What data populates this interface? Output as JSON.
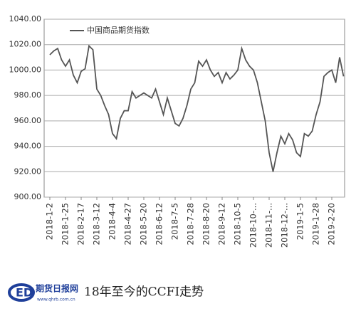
{
  "chart_data": {
    "type": "line",
    "categories": [
      "2018-1-2",
      null,
      null,
      null,
      "2018-1-25",
      null,
      null,
      null,
      "2018-2-17",
      null,
      null,
      null,
      "2018-3-12",
      null,
      null,
      null,
      "2018-4-4",
      null,
      null,
      null,
      "2018-4-27",
      null,
      null,
      null,
      "2018-5-20",
      null,
      null,
      null,
      "2018-6-12",
      null,
      null,
      null,
      "2018-7-5",
      null,
      null,
      null,
      "2018-7-28",
      null,
      null,
      null,
      "2018-8-20",
      null,
      null,
      null,
      "2018-9-12",
      null,
      null,
      null,
      "2018-10-5",
      null,
      null,
      null,
      "2018-10-...",
      null,
      null,
      null,
      "2018-11-...",
      null,
      null,
      null,
      "2018-12-...",
      null,
      null,
      null,
      "2019-1-5",
      null,
      null,
      null,
      "2019-1-28",
      null,
      null,
      null,
      "2019-2-20",
      null,
      null,
      null
    ],
    "series": [
      {
        "name": "中国商品期货指数",
        "color": "#555555",
        "values": [
          1012,
          1015,
          1017,
          1008,
          1003,
          1008,
          996,
          990,
          999,
          1001,
          1019,
          1016,
          985,
          980,
          972,
          965,
          950,
          946,
          962,
          968,
          968,
          983,
          978,
          980,
          982,
          980,
          978,
          985,
          975,
          965,
          978,
          968,
          958,
          956,
          962,
          972,
          985,
          990,
          1007,
          1003,
          1008,
          1000,
          995,
          998,
          990,
          998,
          993,
          996,
          1000,
          1017,
          1008,
          1003,
          1000,
          990,
          975,
          960,
          935,
          920,
          935,
          948,
          942,
          950,
          945,
          935,
          932,
          950,
          948,
          952,
          965,
          975,
          995,
          998,
          1000,
          990,
          1010,
          995
        ]
      }
    ],
    "ylim": [
      900,
      1040
    ],
    "yticks": [
      {
        "value": 900,
        "label": "900.00"
      },
      {
        "value": 920,
        "label": "920.00"
      },
      {
        "value": 940,
        "label": "940.00"
      },
      {
        "value": 960,
        "label": "960.00"
      },
      {
        "value": 980,
        "label": "980.00"
      },
      {
        "value": 1000,
        "label": "1000.00"
      },
      {
        "value": 1020,
        "label": "1020.00"
      },
      {
        "value": 1040,
        "label": "1040.00"
      }
    ],
    "grid": true,
    "caption": {
      "logo": "期货日报网",
      "url": "www.qhrb.com.cn",
      "text": "18年至今的CCFI走势"
    }
  }
}
